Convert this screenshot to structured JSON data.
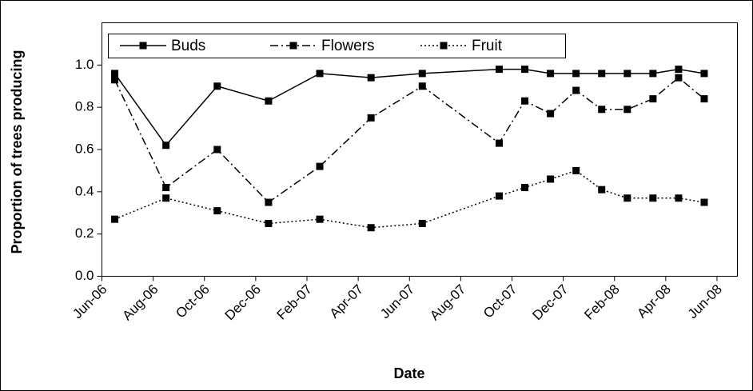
{
  "chart_data": {
    "type": "line",
    "x_label": "Date",
    "y_label": "Proportion of trees producing",
    "x": [
      "2006-06",
      "2006-08",
      "2006-10",
      "2006-12",
      "2007-02",
      "2007-04",
      "2007-06",
      "2007-09",
      "2007-10",
      "2007-11",
      "2007-12",
      "2008-01",
      "2008-02",
      "2008-03",
      "2008-04",
      "2008-05"
    ],
    "series": [
      {
        "name": "Buds",
        "color": "#000000",
        "dash": "solid",
        "values": [
          0.96,
          0.62,
          0.9,
          0.83,
          0.96,
          0.94,
          0.96,
          0.98,
          0.98,
          0.96,
          0.96,
          0.96,
          0.96,
          0.96,
          0.98,
          0.96
        ]
      },
      {
        "name": "Flowers",
        "color": "#000000",
        "dash": "dashdot",
        "values": [
          0.93,
          0.42,
          0.6,
          0.35,
          0.52,
          0.75,
          0.9,
          0.63,
          0.83,
          0.77,
          0.88,
          0.79,
          0.79,
          0.84,
          0.94,
          0.84
        ]
      },
      {
        "name": "Fruit",
        "color": "#000000",
        "dash": "dotted",
        "values": [
          0.27,
          0.37,
          0.31,
          0.25,
          0.27,
          0.23,
          0.25,
          0.38,
          0.42,
          0.46,
          0.5,
          0.41,
          0.37,
          0.37,
          0.37,
          0.35
        ]
      }
    ],
    "xlim": [
      "2006-06",
      "2008-06"
    ],
    "xticks": [
      {
        "value": "2006-06",
        "label": "Jun-06"
      },
      {
        "value": "2006-08",
        "label": "Aug-06"
      },
      {
        "value": "2006-10",
        "label": "Oct-06"
      },
      {
        "value": "2006-12",
        "label": "Dec-06"
      },
      {
        "value": "2007-02",
        "label": "Feb-07"
      },
      {
        "value": "2007-04",
        "label": "Apr-07"
      },
      {
        "value": "2007-06",
        "label": "Jun-07"
      },
      {
        "value": "2007-08",
        "label": "Aug-07"
      },
      {
        "value": "2007-10",
        "label": "Oct-07"
      },
      {
        "value": "2007-12",
        "label": "Dec-07"
      },
      {
        "value": "2008-02",
        "label": "Feb-08"
      },
      {
        "value": "2008-04",
        "label": "Apr-08"
      },
      {
        "value": "2008-06",
        "label": "Jun-08"
      }
    ],
    "ylim": [
      0,
      1.2
    ],
    "yticks": [
      {
        "value": 0,
        "label": "0.0"
      },
      0.2,
      0.4,
      0.6,
      0.8,
      {
        "value": 1,
        "label": "1.0"
      }
    ],
    "legend": "top-left",
    "grid": false
  }
}
